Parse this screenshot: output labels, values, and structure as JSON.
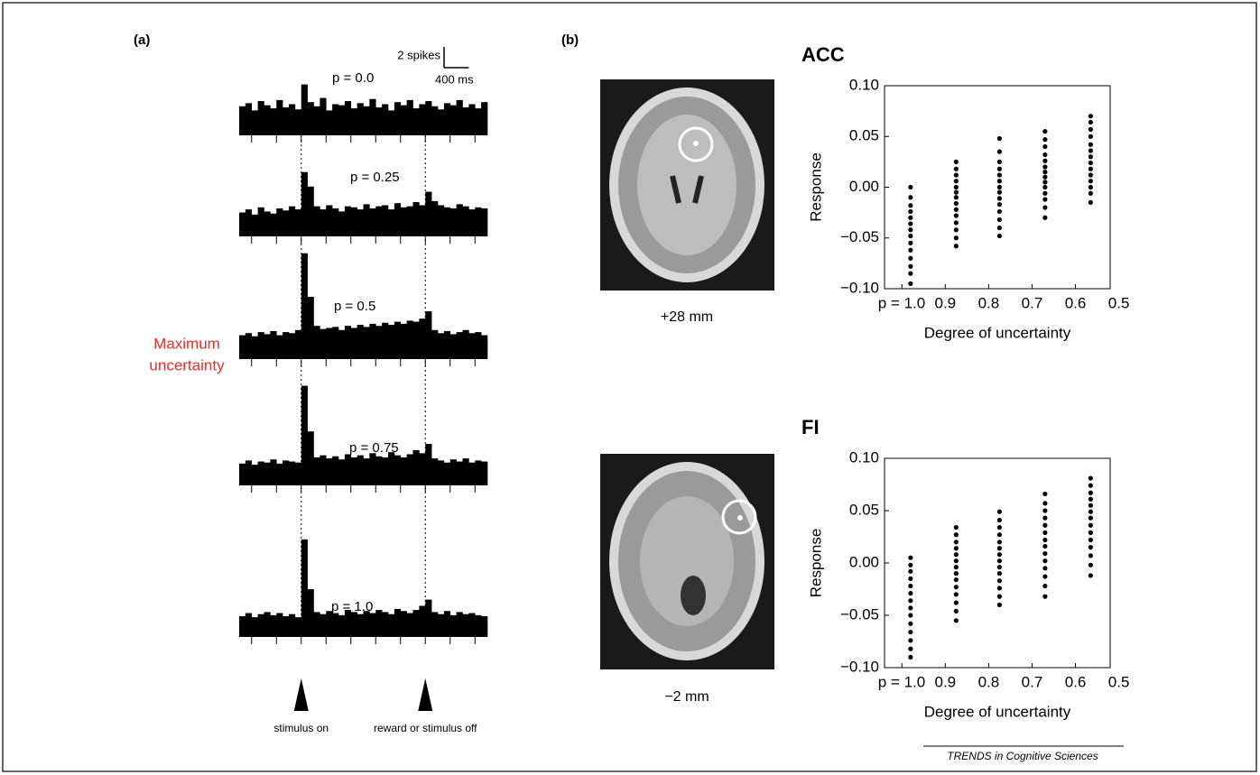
{
  "chart_data": [
    {
      "type": "psth",
      "panel": "(a)",
      "xlim": [
        -1000,
        3000
      ],
      "xticks": [
        -800,
        -400,
        0,
        400,
        800,
        1200,
        1600,
        2000,
        2400,
        2800
      ],
      "bins": [
        -1000,
        -900,
        -800,
        -700,
        -600,
        -500,
        -400,
        -300,
        -200,
        -100,
        0,
        100,
        200,
        300,
        400,
        500,
        600,
        700,
        800,
        900,
        1000,
        1100,
        1200,
        1300,
        1400,
        1500,
        1600,
        1700,
        1800,
        1900,
        2000,
        2100,
        2200,
        2300,
        2400,
        2500,
        2600,
        2700,
        2800,
        2900,
        3000
      ],
      "scale_bar": {
        "y": {
          "value": 2,
          "label": "2 spikes"
        },
        "x": {
          "value": 400,
          "label": "400 ms"
        }
      },
      "annotation": {
        "lines": [
          "Maximum",
          "uncertainty"
        ],
        "color": "#e8302a"
      },
      "events": [
        {
          "value": 0,
          "label": "stimulus on"
        },
        {
          "value": 2000,
          "label": "reward or stimulus off"
        }
      ],
      "color": "#000000",
      "rows": [
        {
          "label": "p = 0.0",
          "values": [
            2.8,
            3.1,
            2.4,
            3.3,
            2.9,
            2.6,
            3.4,
            2.7,
            3.0,
            2.5,
            4.9,
            3.2,
            2.8,
            3.6,
            2.4,
            3.0,
            2.9,
            3.3,
            2.6,
            3.1,
            2.8,
            3.5,
            2.7,
            3.0,
            2.4,
            3.2,
            2.9,
            3.4,
            2.6,
            3.0,
            3.3,
            2.8,
            2.5,
            3.1,
            2.9,
            3.4,
            2.7,
            3.0,
            2.6,
            3.2
          ]
        },
        {
          "label": "p = 0.25",
          "values": [
            2.3,
            2.6,
            2.1,
            2.8,
            2.4,
            2.2,
            2.7,
            2.5,
            2.9,
            2.6,
            6.2,
            4.8,
            2.9,
            2.6,
            3.0,
            2.7,
            2.4,
            2.9,
            2.8,
            2.6,
            3.1,
            2.7,
            2.9,
            3.0,
            2.6,
            3.2,
            2.8,
            2.9,
            3.3,
            3.0,
            4.3,
            3.4,
            3.0,
            2.8,
            2.7,
            3.1,
            2.9,
            2.6,
            2.8,
            2.7
          ]
        },
        {
          "label": "p = 0.5",
          "values": [
            2.3,
            2.5,
            2.2,
            2.6,
            2.4,
            2.7,
            2.3,
            2.6,
            2.5,
            2.8,
            10.2,
            6.0,
            3.2,
            2.9,
            3.0,
            3.1,
            2.8,
            3.2,
            3.0,
            3.3,
            3.1,
            3.4,
            3.2,
            3.5,
            3.3,
            3.6,
            3.4,
            3.7,
            3.6,
            3.9,
            4.6,
            2.8,
            2.5,
            2.7,
            2.4,
            2.6,
            2.8,
            2.5,
            2.6,
            2.3
          ]
        },
        {
          "label": "p = 0.75",
          "values": [
            2.1,
            2.4,
            2.0,
            2.3,
            2.2,
            2.5,
            2.1,
            2.4,
            2.3,
            2.2,
            9.6,
            5.2,
            2.7,
            2.9,
            2.6,
            2.8,
            2.5,
            3.0,
            2.7,
            2.9,
            2.6,
            3.1,
            2.8,
            2.7,
            3.2,
            2.9,
            2.7,
            3.0,
            3.4,
            3.1,
            4.0,
            2.6,
            2.4,
            2.2,
            2.5,
            2.3,
            2.6,
            2.2,
            2.4,
            2.3
          ]
        },
        {
          "label": "p = 1.0",
          "values": [
            2.0,
            2.3,
            1.9,
            2.2,
            2.4,
            2.1,
            2.3,
            2.0,
            2.2,
            1.9,
            9.4,
            4.6,
            2.4,
            2.2,
            2.5,
            2.3,
            2.1,
            2.6,
            2.4,
            2.2,
            2.5,
            2.3,
            2.6,
            2.4,
            2.2,
            2.7,
            2.5,
            2.3,
            2.6,
            3.0,
            3.6,
            2.4,
            2.2,
            2.5,
            2.1,
            2.4,
            2.2,
            2.3,
            2.1,
            2.0
          ]
        }
      ]
    },
    {
      "type": "scatter",
      "panel": "(b)",
      "title": "ACC",
      "image_caption": "+28 mm",
      "xlabel": "Degree of uncertainty",
      "ylabel": "Response",
      "xlim": [
        1.04,
        0.52
      ],
      "ylim": [
        -0.1,
        0.1
      ],
      "xticks": [
        {
          "value": 1.0,
          "label": "p = 1.0"
        },
        0.9,
        0.8,
        0.7,
        0.6,
        0.5
      ],
      "yticks": [
        {
          "value": -0.1,
          "label": "−0.10"
        },
        {
          "value": -0.05,
          "label": "−0.05"
        },
        {
          "value": 0,
          "label": "0.00"
        },
        0.05,
        {
          "value": 0.1,
          "label": "0.10"
        }
      ],
      "color": "#000000",
      "series": [
        {
          "x": 0.98,
          "values": [
            -0.095,
            -0.085,
            -0.078,
            -0.07,
            -0.062,
            -0.055,
            -0.048,
            -0.042,
            -0.036,
            -0.03,
            -0.024,
            -0.018,
            -0.01,
            0.0
          ]
        },
        {
          "x": 0.875,
          "values": [
            -0.058,
            -0.05,
            -0.042,
            -0.035,
            -0.028,
            -0.022,
            -0.016,
            -0.01,
            -0.005,
            0.0,
            0.006,
            0.012,
            0.018,
            0.025
          ]
        },
        {
          "x": 0.775,
          "values": [
            -0.048,
            -0.04,
            -0.032,
            -0.024,
            -0.017,
            -0.011,
            -0.005,
            0.0,
            0.006,
            0.012,
            0.018,
            0.025,
            0.035,
            0.048
          ]
        },
        {
          "x": 0.67,
          "values": [
            -0.03,
            -0.02,
            -0.012,
            -0.006,
            0.0,
            0.005,
            0.01,
            0.015,
            0.02,
            0.026,
            0.032,
            0.04,
            0.047,
            0.055
          ]
        },
        {
          "x": 0.565,
          "values": [
            -0.015,
            -0.006,
            0.0,
            0.006,
            0.012,
            0.018,
            0.024,
            0.03,
            0.036,
            0.042,
            0.05,
            0.057,
            0.064,
            0.07
          ]
        }
      ]
    },
    {
      "type": "scatter",
      "title": "FI",
      "image_caption": "−2 mm",
      "xlabel": "Degree of uncertainty",
      "ylabel": "Response",
      "xlim": [
        1.04,
        0.52
      ],
      "ylim": [
        -0.1,
        0.1
      ],
      "xticks": [
        {
          "value": 1.0,
          "label": "p = 1.0"
        },
        0.9,
        0.8,
        0.7,
        0.6,
        0.5
      ],
      "yticks": [
        {
          "value": -0.1,
          "label": "−0.10"
        },
        {
          "value": -0.05,
          "label": "−0.05"
        },
        {
          "value": 0,
          "label": "0.00"
        },
        0.05,
        {
          "value": 0.1,
          "label": "0.10"
        }
      ],
      "color": "#000000",
      "series": [
        {
          "x": 0.98,
          "values": [
            -0.09,
            -0.082,
            -0.074,
            -0.066,
            -0.058,
            -0.05,
            -0.043,
            -0.036,
            -0.029,
            -0.022,
            -0.015,
            -0.008,
            -0.002,
            0.005
          ]
        },
        {
          "x": 0.875,
          "values": [
            -0.055,
            -0.046,
            -0.038,
            -0.03,
            -0.023,
            -0.016,
            -0.01,
            -0.004,
            0.002,
            0.008,
            0.014,
            0.02,
            0.027,
            0.034
          ]
        },
        {
          "x": 0.775,
          "values": [
            -0.04,
            -0.032,
            -0.024,
            -0.017,
            -0.01,
            -0.004,
            0.002,
            0.008,
            0.014,
            0.02,
            0.027,
            0.034,
            0.041,
            0.049
          ]
        },
        {
          "x": 0.67,
          "values": [
            -0.032,
            -0.022,
            -0.013,
            -0.005,
            0.002,
            0.009,
            0.016,
            0.022,
            0.029,
            0.036,
            0.043,
            0.05,
            0.057,
            0.066
          ]
        },
        {
          "x": 0.565,
          "values": [
            -0.012,
            -0.002,
            0.007,
            0.015,
            0.022,
            0.029,
            0.036,
            0.043,
            0.049,
            0.055,
            0.061,
            0.067,
            0.074,
            0.081
          ]
        }
      ]
    }
  ],
  "source": "TRENDS in Cognitive Sciences"
}
